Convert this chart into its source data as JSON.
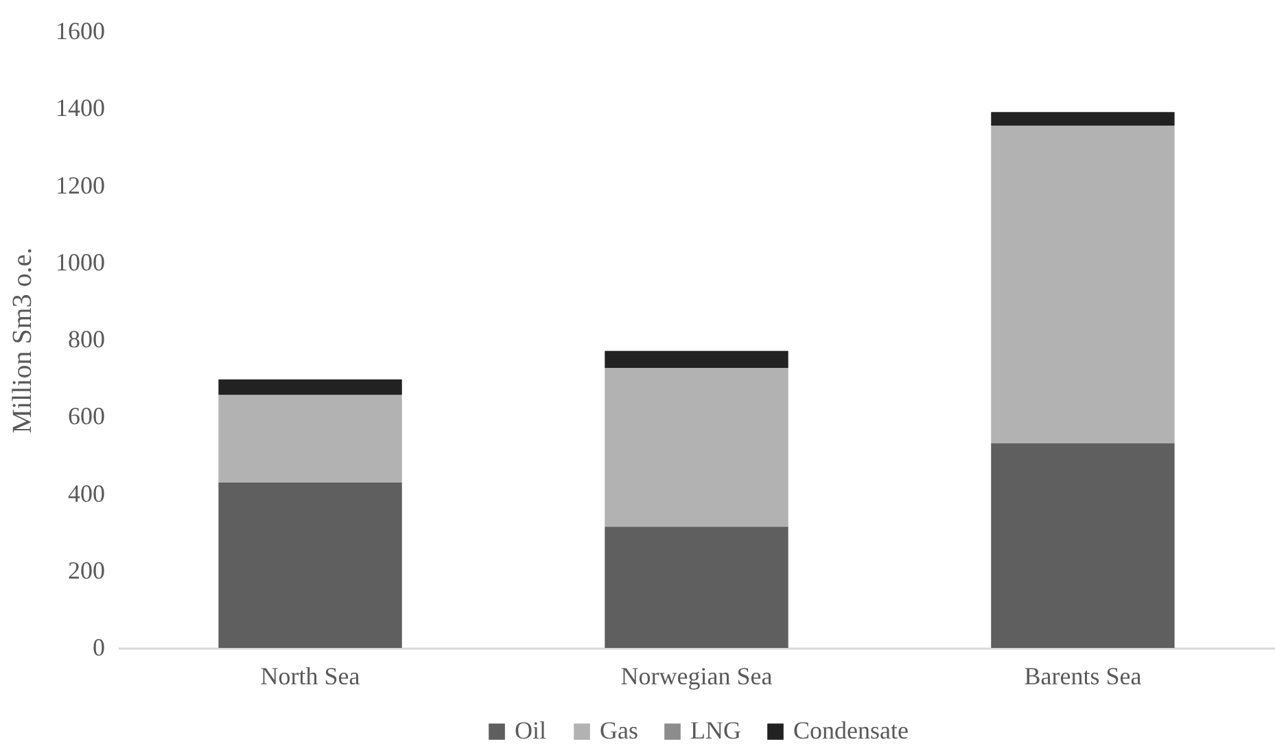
{
  "chart_data": {
    "type": "bar",
    "stacked": true,
    "categories": [
      "North Sea",
      "Norwegian Sea",
      "Barents Sea"
    ],
    "ylabel": "Million Sm3 o.e.",
    "ylim": [
      0,
      1600
    ],
    "yticks": [
      0,
      200,
      400,
      600,
      800,
      1000,
      1200,
      1400,
      1600
    ],
    "grid": false,
    "legend": "bottom",
    "marker": "square",
    "series": [
      {
        "name": "Oil",
        "color": "#5f5f5f",
        "values": [
          430,
          315,
          532
        ]
      },
      {
        "name": "Gas",
        "color": "#b2b2b2",
        "values": [
          227,
          412,
          824
        ]
      },
      {
        "name": "LNG",
        "color": "#8c8c8c",
        "values": [
          0,
          0,
          0
        ]
      },
      {
        "name": "Condensate",
        "color": "#222222",
        "values": [
          40,
          44,
          35
        ]
      }
    ]
  }
}
